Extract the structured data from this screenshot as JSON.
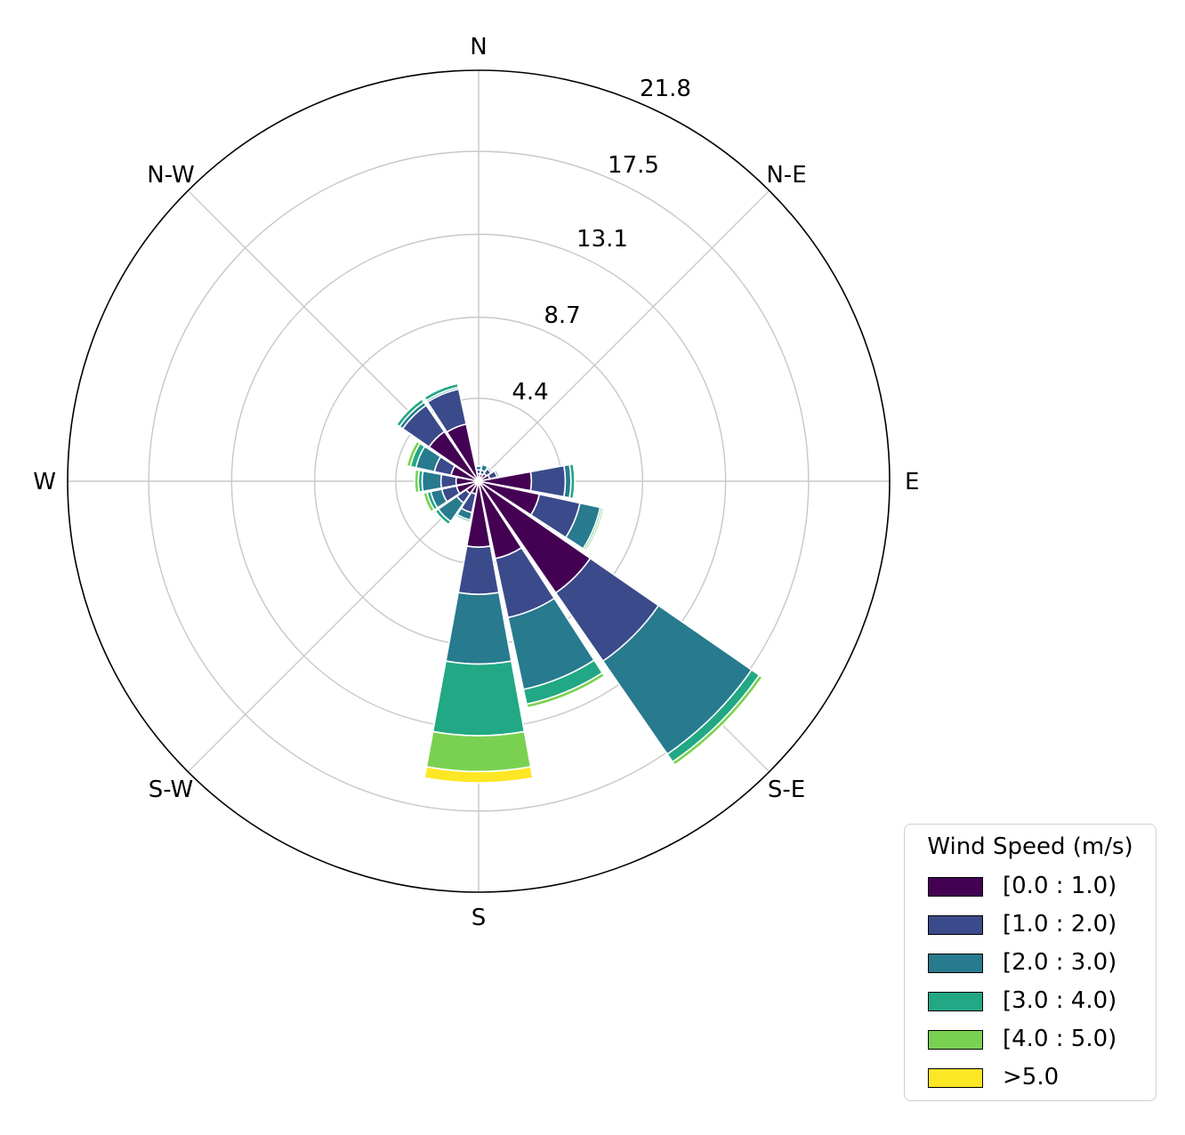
{
  "chart_data": {
    "type": "windrose",
    "directions": [
      "E",
      "N-E",
      "N",
      "N-W",
      "W",
      "S-W",
      "S",
      "S-E"
    ],
    "radial_ticks": [
      "4.4",
      "8.7",
      "13.1",
      "17.5",
      "21.8"
    ],
    "radial_tick_values": [
      4.4,
      8.7,
      13.1,
      17.5,
      21.8
    ],
    "rmax": 21.8,
    "grid": true,
    "legend_position": "lower-right",
    "legend": {
      "title": "Wind Speed (m/s)",
      "entries": [
        "[0.0 : 1.0)",
        "[1.0 : 2.0)",
        "[2.0 : 3.0)",
        "[3.0 : 4.0)",
        "[4.0 : 5.0)",
        ">5.0"
      ]
    },
    "bin_colors": [
      "#440154",
      "#3b4a8a",
      "#287a8e",
      "#22a884",
      "#7ad151",
      "#fde725"
    ],
    "sector_width_deg": 22.5,
    "sectors": [
      {
        "direction_deg": 0,
        "cumulative": [
          0.4,
          0.6,
          0.8,
          0.8,
          0.8,
          0.8
        ]
      },
      {
        "direction_deg": 22.5,
        "cumulative": [
          0.4,
          0.6,
          0.9,
          0.9,
          0.9,
          0.9
        ]
      },
      {
        "direction_deg": 45,
        "cumulative": [
          0.5,
          0.8,
          0.9,
          0.9,
          0.9,
          0.9
        ]
      },
      {
        "direction_deg": 67.5,
        "cumulative": [
          0.6,
          1.0,
          1.1,
          1.1,
          1.1,
          1.1
        ]
      },
      {
        "direction_deg": 90,
        "cumulative": [
          2.8,
          4.6,
          4.9,
          5.1,
          5.1,
          5.1
        ]
      },
      {
        "direction_deg": 112.5,
        "cumulative": [
          3.3,
          5.5,
          6.6,
          6.7,
          6.8,
          6.8
        ]
      },
      {
        "direction_deg": 135,
        "cumulative": [
          7.2,
          11.6,
          17.6,
          18.1,
          18.3,
          18.3
        ]
      },
      {
        "direction_deg": 157.5,
        "cumulative": [
          4.2,
          7.4,
          11.3,
          12.1,
          12.3,
          12.3
        ]
      },
      {
        "direction_deg": 180,
        "cumulative": [
          3.5,
          6.0,
          9.7,
          13.5,
          15.4,
          16.0
        ]
      },
      {
        "direction_deg": 202.5,
        "cumulative": [
          0.7,
          1.7,
          2.1,
          2.2,
          2.2,
          2.2
        ]
      },
      {
        "direction_deg": 225,
        "cumulative": [
          0.8,
          1.4,
          2.6,
          2.8,
          2.8,
          2.8
        ]
      },
      {
        "direction_deg": 247.5,
        "cumulative": [
          1.2,
          2.0,
          2.6,
          2.8,
          3.0,
          3.0
        ]
      },
      {
        "direction_deg": 270,
        "cumulative": [
          1.2,
          2.0,
          3.0,
          3.2,
          3.4,
          3.4
        ]
      },
      {
        "direction_deg": 292.5,
        "cumulative": [
          1.5,
          2.4,
          3.4,
          3.7,
          3.9,
          3.9
        ]
      },
      {
        "direction_deg": 315,
        "cumulative": [
          3.2,
          4.9,
          5.1,
          5.3,
          5.3,
          5.3
        ]
      },
      {
        "direction_deg": 337.5,
        "cumulative": [
          3.1,
          5.0,
          5.1,
          5.3,
          5.3,
          5.3
        ]
      }
    ]
  }
}
